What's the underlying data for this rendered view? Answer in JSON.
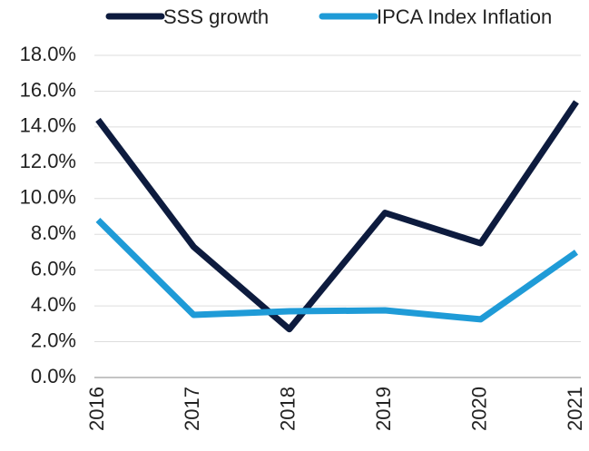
{
  "chart_data": {
    "type": "line",
    "categories": [
      "2016",
      "2017",
      "2018",
      "2019",
      "2020",
      "2021"
    ],
    "series": [
      {
        "name": "SSS growth",
        "color": "#0d1b3e",
        "values": [
          14.4,
          7.3,
          2.7,
          9.2,
          7.5,
          15.4
        ]
      },
      {
        "name": "IPCA Index Inflation",
        "color": "#1f9bd7",
        "values": [
          8.8,
          3.5,
          3.7,
          3.75,
          3.25,
          7.0
        ]
      }
    ],
    "ylim": [
      0,
      18
    ],
    "yticks": [
      {
        "value": 0,
        "label": "0.0%"
      },
      {
        "value": 2,
        "label": "2.0%"
      },
      {
        "value": 4,
        "label": "4.0%"
      },
      {
        "value": 6,
        "label": "6.0%"
      },
      {
        "value": 8,
        "label": "8.0%"
      },
      {
        "value": 10,
        "label": "10.0%"
      },
      {
        "value": 12,
        "label": "12.0%"
      },
      {
        "value": 14,
        "label": "14.0%"
      },
      {
        "value": 16,
        "label": "16.0%"
      },
      {
        "value": 18,
        "label": "18.0%"
      }
    ],
    "grid": true,
    "legend": "top"
  }
}
